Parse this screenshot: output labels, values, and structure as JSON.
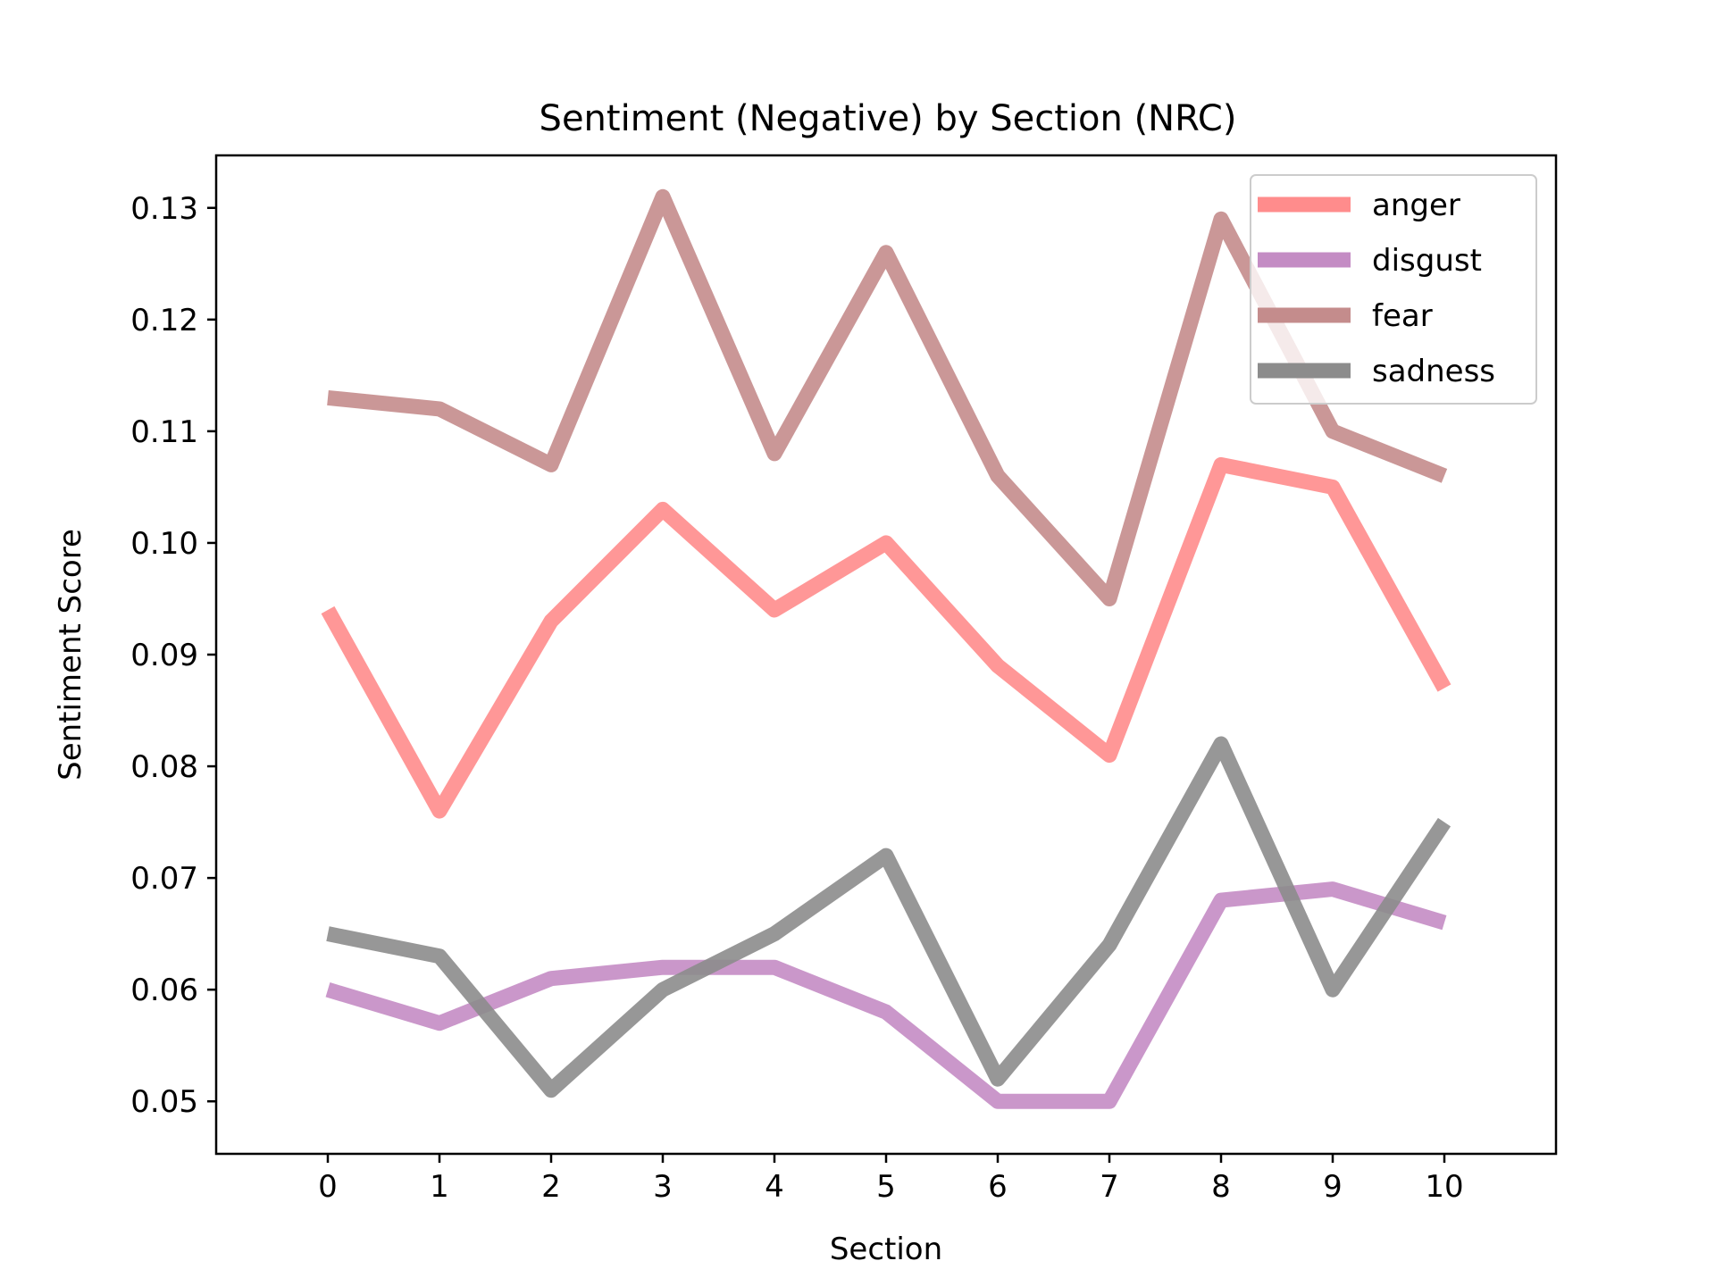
{
  "chart_data": {
    "type": "line",
    "title": "Sentiment (Negative) by Section (NRC)",
    "xlabel": "Section",
    "ylabel": "Sentiment Score",
    "x": [
      0,
      1,
      2,
      3,
      4,
      5,
      6,
      7,
      8,
      9,
      10
    ],
    "xlim": [
      -1,
      11
    ],
    "ylim": [
      0.0453,
      0.1347
    ],
    "xticks": [
      "0",
      "1",
      "2",
      "3",
      "4",
      "5",
      "6",
      "7",
      "8",
      "9",
      "10"
    ],
    "yticks": [
      "0.05",
      "0.06",
      "0.07",
      "0.08",
      "0.09",
      "0.10",
      "0.11",
      "0.12",
      "0.13"
    ],
    "grid": false,
    "legend_position": "top-right",
    "series": [
      {
        "name": "anger",
        "color": "#ff8c8c",
        "values": [
          0.094,
          0.076,
          0.093,
          0.103,
          0.094,
          0.1,
          0.089,
          0.081,
          0.107,
          0.105,
          0.087
        ]
      },
      {
        "name": "disgust",
        "color": "#c48cc4",
        "values": [
          0.06,
          0.057,
          0.061,
          0.062,
          0.062,
          0.058,
          0.05,
          0.05,
          0.068,
          0.069,
          0.066
        ]
      },
      {
        "name": "fear",
        "color": "#c48c8c",
        "values": [
          0.113,
          0.112,
          0.107,
          0.131,
          0.108,
          0.126,
          0.106,
          0.095,
          0.129,
          0.11,
          0.106
        ]
      },
      {
        "name": "sadness",
        "color": "#8c8c8c",
        "values": [
          0.065,
          0.063,
          0.051,
          0.06,
          0.065,
          0.072,
          0.052,
          0.064,
          0.082,
          0.06,
          0.075
        ]
      }
    ]
  }
}
